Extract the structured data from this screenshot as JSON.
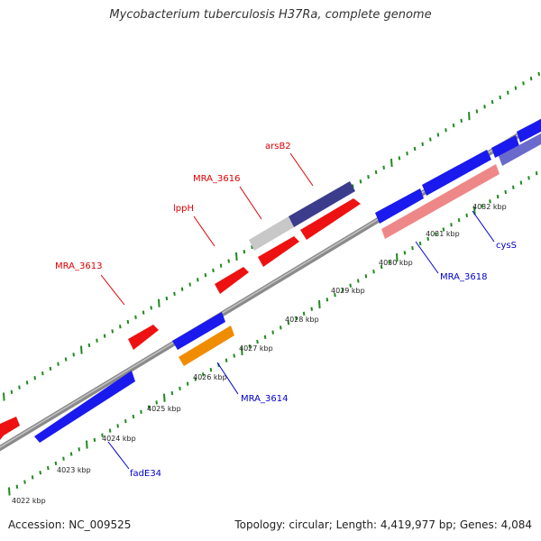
{
  "title": "Mycobacterium tuberculosis H37Ra, complete genome",
  "footer": {
    "accession": "Accession: NC_009525",
    "summary": "Topology: circular; Length: 4,419,977 bp; Genes: 4,084"
  },
  "colors": {
    "backbone": "#8a8a8a",
    "tick": "#1e8a1e",
    "gene_red": "#ee1111",
    "gene_blue": "#1a1aee",
    "gene_orange": "#f08c00",
    "gene_gray": "#c8c8c8",
    "gene_navy": "#3c3c8c",
    "gene_pink": "#ee8888",
    "gene_violet": "#6a6acc",
    "label_red": "#dd0000",
    "label_blue": "#0000cc"
  },
  "kbp_labels": [
    {
      "text": "4022 kbp",
      "kbp": 4022
    },
    {
      "text": "4023 kbp",
      "kbp": 4023
    },
    {
      "text": "4024 kbp",
      "kbp": 4024
    },
    {
      "text": "4025 kbp",
      "kbp": 4025
    },
    {
      "text": "4026 kbp",
      "kbp": 4026
    },
    {
      "text": "4027 kbp",
      "kbp": 4027
    },
    {
      "text": "4028 kbp",
      "kbp": 4028
    },
    {
      "text": "4029 kbp",
      "kbp": 4029
    },
    {
      "text": "4030 kbp",
      "kbp": 4030
    },
    {
      "text": "4031 kbp",
      "kbp": 4031
    },
    {
      "text": "4032 kbp",
      "kbp": 4032
    }
  ],
  "gene_labels": [
    {
      "name": "MRA_3613",
      "strand": "top"
    },
    {
      "name": "lppH",
      "strand": "top"
    },
    {
      "name": "MRA_3616",
      "strand": "top"
    },
    {
      "name": "arsB2",
      "strand": "top"
    },
    {
      "name": "fadE34",
      "strand": "bottom"
    },
    {
      "name": "MRA_3614",
      "strand": "bottom"
    },
    {
      "name": "MRA_3618",
      "strand": "bottom"
    },
    {
      "name": "cysS",
      "strand": "bottom"
    }
  ]
}
